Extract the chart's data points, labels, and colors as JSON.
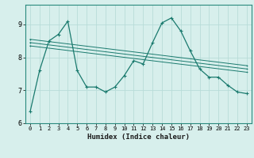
{
  "title": "",
  "xlabel": "Humidex (Indice chaleur)",
  "ylabel": "",
  "background_color": "#d7efec",
  "grid_color": "#b8dcd8",
  "line_color": "#1a7a6e",
  "xlim": [
    -0.5,
    23.5
  ],
  "ylim": [
    6.0,
    9.6
  ],
  "yticks": [
    6,
    7,
    8,
    9
  ],
  "xticks": [
    0,
    1,
    2,
    3,
    4,
    5,
    6,
    7,
    8,
    9,
    10,
    11,
    12,
    13,
    14,
    15,
    16,
    17,
    18,
    19,
    20,
    21,
    22,
    23
  ],
  "series": [
    {
      "x": [
        0,
        1,
        2,
        3,
        4,
        5,
        6,
        7,
        8,
        9,
        10,
        11,
        12,
        13,
        14,
        15,
        16,
        17,
        18,
        19,
        20,
        21,
        22,
        23
      ],
      "y": [
        6.35,
        7.6,
        8.5,
        8.7,
        9.1,
        7.6,
        7.1,
        7.1,
        6.95,
        7.1,
        7.45,
        7.9,
        7.8,
        8.45,
        9.05,
        9.2,
        8.8,
        8.2,
        7.65,
        7.4,
        7.4,
        7.15,
        6.95,
        6.9
      ]
    },
    {
      "x": [
        0,
        23
      ],
      "y": [
        8.55,
        7.75
      ]
    },
    {
      "x": [
        0,
        23
      ],
      "y": [
        8.45,
        7.65
      ]
    },
    {
      "x": [
        0,
        23
      ],
      "y": [
        8.35,
        7.55
      ]
    }
  ]
}
